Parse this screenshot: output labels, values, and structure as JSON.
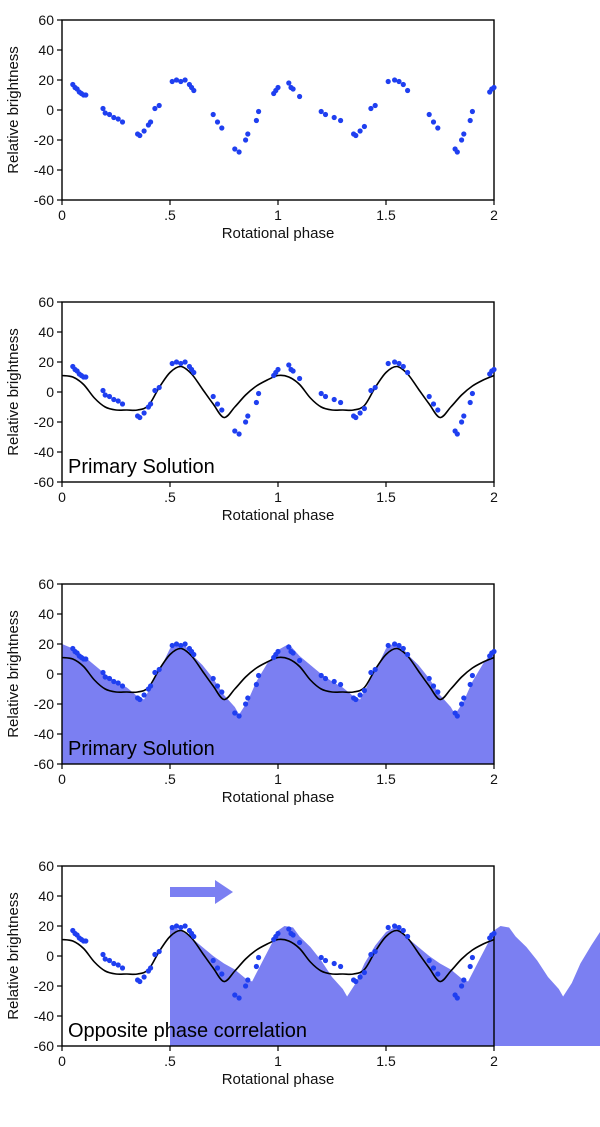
{
  "chart_data": [
    {
      "type": "scatter",
      "xlabel": "Rotational phase",
      "ylabel": "Relative brightness",
      "xlim": [
        0,
        2
      ],
      "ylim": [
        -60,
        60
      ],
      "x_ticks": [
        "0",
        ".5",
        "1",
        "1.5",
        "2"
      ],
      "y_ticks": [
        "60",
        "40",
        "20",
        "0",
        "-20",
        "-40",
        "-60"
      ],
      "annotation": "",
      "shows_model": false,
      "shows_fill": false,
      "shows_arrow": false,
      "fill_shift": 0
    },
    {
      "type": "scatter",
      "xlabel": "Rotational phase",
      "ylabel": "Relative brightness",
      "xlim": [
        0,
        2
      ],
      "ylim": [
        -60,
        60
      ],
      "x_ticks": [
        "0",
        ".5",
        "1",
        "1.5",
        "2"
      ],
      "y_ticks": [
        "60",
        "40",
        "20",
        "0",
        "-20",
        "-40",
        "-60"
      ],
      "annotation": "Primary Solution",
      "shows_model": true,
      "shows_fill": false,
      "shows_arrow": false,
      "fill_shift": 0
    },
    {
      "type": "scatter",
      "xlabel": "Rotational phase",
      "ylabel": "Relative brightness",
      "xlim": [
        0,
        2
      ],
      "ylim": [
        -60,
        60
      ],
      "x_ticks": [
        "0",
        ".5",
        "1",
        "1.5",
        "2"
      ],
      "y_ticks": [
        "60",
        "40",
        "20",
        "0",
        "-20",
        "-40",
        "-60"
      ],
      "annotation": "Primary Solution",
      "shows_model": true,
      "shows_fill": true,
      "shows_arrow": false,
      "fill_shift": 0
    },
    {
      "type": "scatter",
      "xlabel": "Rotational phase",
      "ylabel": "Relative brightness",
      "xlim": [
        0,
        2
      ],
      "ylim": [
        -60,
        60
      ],
      "x_ticks": [
        "0",
        ".5",
        "1",
        "1.5",
        "2"
      ],
      "y_ticks": [
        "60",
        "40",
        "20",
        "0",
        "-20",
        "-40",
        "-60"
      ],
      "annotation": "Opposite phase correlation",
      "shows_model": true,
      "shows_fill": true,
      "shows_arrow": true,
      "fill_shift": 0.5
    }
  ],
  "observations": [
    [
      0.05,
      17
    ],
    [
      0.06,
      15
    ],
    [
      0.07,
      14
    ],
    [
      0.08,
      12
    ],
    [
      0.09,
      11
    ],
    [
      0.1,
      10
    ],
    [
      0.11,
      10
    ],
    [
      0.19,
      1
    ],
    [
      0.2,
      -2
    ],
    [
      0.22,
      -3
    ],
    [
      0.24,
      -5
    ],
    [
      0.26,
      -6
    ],
    [
      0.28,
      -8
    ],
    [
      0.35,
      -16
    ],
    [
      0.36,
      -17
    ],
    [
      0.38,
      -14
    ],
    [
      0.4,
      -10
    ],
    [
      0.41,
      -8
    ],
    [
      0.43,
      1
    ],
    [
      0.45,
      3
    ],
    [
      0.51,
      19
    ],
    [
      0.53,
      20
    ],
    [
      0.55,
      19
    ],
    [
      0.57,
      20
    ],
    [
      0.59,
      17
    ],
    [
      0.6,
      15
    ],
    [
      0.61,
      13
    ],
    [
      0.7,
      -3
    ],
    [
      0.72,
      -8
    ],
    [
      0.74,
      -12
    ],
    [
      0.8,
      -26
    ],
    [
      0.82,
      -28
    ],
    [
      0.85,
      -20
    ],
    [
      0.86,
      -16
    ],
    [
      0.9,
      -7
    ],
    [
      0.91,
      -1
    ],
    [
      0.98,
      11
    ],
    [
      0.99,
      13
    ],
    [
      1,
      15
    ],
    [
      1.05,
      18
    ],
    [
      1.06,
      15
    ],
    [
      1.07,
      14
    ],
    [
      1.1,
      9
    ],
    [
      1.2,
      -1
    ],
    [
      1.22,
      -3
    ],
    [
      1.26,
      -5
    ],
    [
      1.29,
      -7
    ],
    [
      1.35,
      -16
    ],
    [
      1.36,
      -17
    ],
    [
      1.38,
      -14
    ],
    [
      1.4,
      -11
    ],
    [
      1.43,
      1
    ],
    [
      1.45,
      3
    ],
    [
      1.51,
      19
    ],
    [
      1.54,
      20
    ],
    [
      1.56,
      19
    ],
    [
      1.58,
      17
    ],
    [
      1.6,
      13
    ],
    [
      1.7,
      -3
    ],
    [
      1.72,
      -8
    ],
    [
      1.74,
      -12
    ],
    [
      1.82,
      -26
    ],
    [
      1.83,
      -28
    ],
    [
      1.85,
      -20
    ],
    [
      1.86,
      -16
    ],
    [
      1.89,
      -7
    ],
    [
      1.9,
      -1
    ],
    [
      1.98,
      12
    ],
    [
      1.99,
      14
    ],
    [
      2,
      15
    ]
  ],
  "model_curve": [
    [
      0,
      11
    ],
    [
      0.05,
      10
    ],
    [
      0.1,
      5
    ],
    [
      0.15,
      -4
    ],
    [
      0.2,
      -10
    ],
    [
      0.25,
      -12
    ],
    [
      0.3,
      -12
    ],
    [
      0.35,
      -12
    ],
    [
      0.4,
      -9
    ],
    [
      0.45,
      3
    ],
    [
      0.5,
      13
    ],
    [
      0.55,
      17
    ],
    [
      0.6,
      12
    ],
    [
      0.65,
      2
    ],
    [
      0.7,
      -8
    ],
    [
      0.75,
      -17
    ],
    [
      0.8,
      -10
    ],
    [
      0.85,
      -2
    ],
    [
      0.9,
      4
    ],
    [
      0.95,
      8
    ],
    [
      1,
      11
    ],
    [
      1.05,
      10
    ],
    [
      1.1,
      5
    ],
    [
      1.15,
      -4
    ],
    [
      1.2,
      -10
    ],
    [
      1.25,
      -12
    ],
    [
      1.3,
      -12
    ],
    [
      1.35,
      -12
    ],
    [
      1.4,
      -9
    ],
    [
      1.45,
      3
    ],
    [
      1.5,
      13
    ],
    [
      1.55,
      17
    ],
    [
      1.6,
      12
    ],
    [
      1.65,
      2
    ],
    [
      1.7,
      -8
    ],
    [
      1.75,
      -17
    ],
    [
      1.8,
      -10
    ],
    [
      1.85,
      -2
    ],
    [
      1.9,
      4
    ],
    [
      1.95,
      8
    ],
    [
      2,
      11
    ]
  ],
  "fill_profile": [
    [
      0,
      20
    ],
    [
      0.05,
      17
    ],
    [
      0.1,
      12
    ],
    [
      0.15,
      6
    ],
    [
      0.2,
      0
    ],
    [
      0.25,
      -5
    ],
    [
      0.3,
      -9
    ],
    [
      0.35,
      -15
    ],
    [
      0.38,
      -17
    ],
    [
      0.43,
      -3
    ],
    [
      0.47,
      8
    ],
    [
      0.5,
      17
    ],
    [
      0.53,
      20
    ],
    [
      0.57,
      19
    ],
    [
      0.6,
      13
    ],
    [
      0.65,
      6
    ],
    [
      0.7,
      -3
    ],
    [
      0.75,
      -14
    ],
    [
      0.8,
      -22
    ],
    [
      0.82,
      -27
    ],
    [
      0.86,
      -18
    ],
    [
      0.9,
      -5
    ],
    [
      0.95,
      7
    ],
    [
      1,
      16
    ],
    [
      1.05,
      20
    ],
    [
      1.1,
      12
    ],
    [
      1.15,
      6
    ],
    [
      1.2,
      0
    ],
    [
      1.25,
      -5
    ],
    [
      1.3,
      -9
    ],
    [
      1.35,
      -15
    ],
    [
      1.38,
      -17
    ],
    [
      1.43,
      -3
    ],
    [
      1.47,
      8
    ],
    [
      1.5,
      17
    ],
    [
      1.53,
      20
    ],
    [
      1.57,
      19
    ],
    [
      1.6,
      13
    ],
    [
      1.65,
      6
    ],
    [
      1.7,
      -3
    ],
    [
      1.75,
      -14
    ],
    [
      1.8,
      -22
    ],
    [
      1.82,
      -27
    ],
    [
      1.86,
      -18
    ],
    [
      1.9,
      -5
    ],
    [
      1.95,
      7
    ],
    [
      2,
      16
    ]
  ],
  "colors": {
    "points": "#1f3ff0",
    "model": "#000000",
    "fill": "#7b7ff2",
    "arrow": "#7b7ff2",
    "frame": "#000000"
  }
}
